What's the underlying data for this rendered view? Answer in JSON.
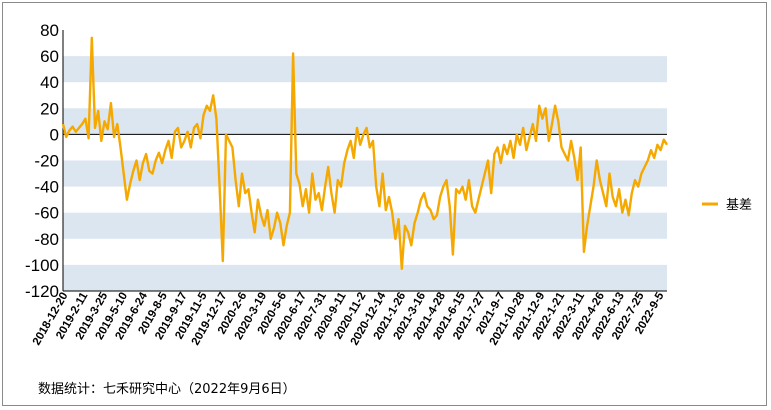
{
  "chart_data": {
    "type": "line",
    "ylim": [
      -120,
      80
    ],
    "yticks": [
      80,
      60,
      40,
      20,
      0,
      -20,
      -40,
      -60,
      -80,
      -100,
      -120
    ],
    "xticks": [
      "2018-12-20",
      "2019-2-11",
      "2019-3-25",
      "2019-5-10",
      "2019-6-24",
      "2019-8-5",
      "2019-9-17",
      "2019-11-5",
      "2019-12-17",
      "2020-2-6",
      "2020-3-19",
      "2020-5-6",
      "2020-6-17",
      "2020-7-31",
      "2020-9-11",
      "2020-11-2",
      "2020-12-14",
      "2021-1-26",
      "2021-3-16",
      "2021-4-28",
      "2021-6-15",
      "2021-7-27",
      "2021-9-7",
      "2021-10-28",
      "2021-12-9",
      "2022-1-21",
      "2022-3-11",
      "2022-4-26",
      "2022-6-13",
      "2022-7-25",
      "2022-9-5"
    ],
    "grid": "horizontal bands",
    "legend_position": "right",
    "series": [
      {
        "name": "基差",
        "color": "#f5a800",
        "values": [
          8,
          -2,
          3,
          6,
          2,
          5,
          8,
          12,
          -3,
          74,
          5,
          18,
          -5,
          10,
          4,
          24,
          -2,
          8,
          -10,
          -30,
          -50,
          -38,
          -28,
          -20,
          -35,
          -22,
          -15,
          -28,
          -30,
          -20,
          -14,
          -22,
          -12,
          -5,
          -18,
          2,
          5,
          -10,
          -5,
          2,
          -10,
          5,
          8,
          -3,
          15,
          22,
          18,
          30,
          12,
          -40,
          -97,
          0,
          -5,
          -10,
          -35,
          -55,
          -30,
          -45,
          -42,
          -60,
          -75,
          -50,
          -62,
          -70,
          -58,
          -80,
          -72,
          -60,
          -68,
          -85,
          -70,
          -60,
          62,
          -30,
          -38,
          -55,
          -42,
          -60,
          -30,
          -50,
          -45,
          -58,
          -40,
          -25,
          -45,
          -60,
          -35,
          -40,
          -22,
          -12,
          -5,
          -18,
          5,
          -8,
          0,
          5,
          -10,
          -5,
          -40,
          -55,
          -30,
          -58,
          -48,
          -60,
          -80,
          -65,
          -103,
          -70,
          -75,
          -85,
          -68,
          -60,
          -50,
          -45,
          -55,
          -58,
          -65,
          -62,
          -48,
          -40,
          -35,
          -55,
          -92,
          -42,
          -45,
          -40,
          -50,
          -35,
          -55,
          -60,
          -50,
          -40,
          -30,
          -20,
          -45,
          -15,
          -10,
          -22,
          -8,
          -15,
          -5,
          -18,
          0,
          -8,
          5,
          -12,
          -2,
          8,
          -5,
          22,
          12,
          20,
          -5,
          8,
          22,
          10,
          -10,
          -15,
          -20,
          -5,
          -18,
          -35,
          -10,
          -90,
          -70,
          -55,
          -40,
          -20,
          -35,
          -45,
          -55,
          -30,
          -48,
          -55,
          -42,
          -60,
          -50,
          -62,
          -45,
          -35,
          -40,
          -30,
          -25,
          -20,
          -12,
          -18,
          -8,
          -12,
          -4,
          -8
        ]
      }
    ]
  },
  "source_text": "数据统计：七禾研究中心（2022年9月6日）"
}
